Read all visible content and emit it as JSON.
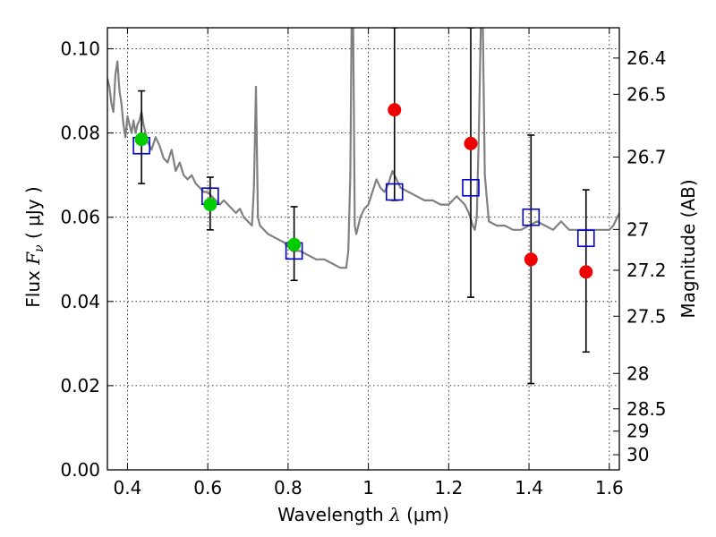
{
  "chart_data": {
    "type": "scatter",
    "title": "",
    "xlabel": "Wavelength  λ (μm)",
    "ylabel_left": "Flux  F_ν  ( μJy )",
    "ylabel_left_parts": {
      "prefix": "Flux  ",
      "symbol": "F",
      "subscript": "ν",
      "suffix": "  ( μJy )"
    },
    "xlabel_parts": {
      "prefix": "Wavelength  ",
      "symbol": "λ",
      "suffix": " (μm)"
    },
    "ylabel_right": "Magnitude (AB)",
    "xlim": [
      0.35,
      1.625
    ],
    "ylim": [
      0.0,
      0.105
    ],
    "grid": true,
    "x_ticks": [
      0.4,
      0.6,
      0.8,
      1.0,
      1.2,
      1.4,
      1.6
    ],
    "x_tick_labels": [
      "0.4",
      "0.6",
      "0.8",
      "1",
      "1.2",
      "1.4",
      "1.6"
    ],
    "y_ticks": [
      0.0,
      0.02,
      0.04,
      0.06,
      0.08,
      0.1
    ],
    "y_tick_labels": [
      "0.00",
      "0.02",
      "0.04",
      "0.06",
      "0.08",
      "0.10"
    ],
    "right_ticks": [
      {
        "flux": 0.0978,
        "label": "26.4"
      },
      {
        "flux": 0.0892,
        "label": "26.5"
      },
      {
        "flux": 0.0743,
        "label": "26.7"
      },
      {
        "flux": 0.0571,
        "label": "27"
      },
      {
        "flux": 0.0474,
        "label": "27.2"
      },
      {
        "flux": 0.0365,
        "label": "27.5"
      },
      {
        "flux": 0.0229,
        "label": "28"
      },
      {
        "flux": 0.0145,
        "label": "28.5"
      },
      {
        "flux": 0.0092,
        "label": "29"
      },
      {
        "flux": 0.0036,
        "label": "30"
      }
    ],
    "colors": {
      "model": "#808080",
      "model_photometry": "#0000cc",
      "optical_detections": "#00cc00",
      "nir_detections": "#ee0000",
      "errorbars": "#000000"
    },
    "series": [
      {
        "role": "model-spectrum",
        "x": [
          0.35,
          0.355,
          0.36,
          0.365,
          0.37,
          0.375,
          0.38,
          0.385,
          0.39,
          0.395,
          0.4,
          0.405,
          0.41,
          0.415,
          0.42,
          0.425,
          0.43,
          0.435,
          0.44,
          0.445,
          0.45,
          0.46,
          0.47,
          0.48,
          0.49,
          0.5,
          0.51,
          0.52,
          0.53,
          0.54,
          0.55,
          0.56,
          0.57,
          0.58,
          0.59,
          0.6,
          0.61,
          0.62,
          0.63,
          0.64,
          0.65,
          0.66,
          0.67,
          0.68,
          0.69,
          0.7,
          0.71,
          0.715,
          0.72,
          0.725,
          0.73,
          0.75,
          0.77,
          0.79,
          0.81,
          0.83,
          0.85,
          0.87,
          0.89,
          0.91,
          0.93,
          0.945,
          0.95,
          0.955,
          0.958,
          0.962,
          0.966,
          0.97,
          0.975,
          0.98,
          0.99,
          1.0,
          1.01,
          1.02,
          1.03,
          1.04,
          1.05,
          1.06,
          1.08,
          1.1,
          1.12,
          1.14,
          1.16,
          1.18,
          1.2,
          1.22,
          1.24,
          1.25,
          1.26,
          1.265,
          1.27,
          1.275,
          1.28,
          1.285,
          1.29,
          1.3,
          1.32,
          1.34,
          1.36,
          1.38,
          1.4,
          1.42,
          1.44,
          1.46,
          1.48,
          1.5,
          1.52,
          1.54,
          1.56,
          1.58,
          1.6,
          1.61,
          1.625
        ],
        "y": [
          0.093,
          0.091,
          0.087,
          0.085,
          0.094,
          0.097,
          0.09,
          0.087,
          0.082,
          0.079,
          0.084,
          0.082,
          0.08,
          0.083,
          0.08,
          0.082,
          0.083,
          0.085,
          0.082,
          0.08,
          0.078,
          0.076,
          0.079,
          0.077,
          0.074,
          0.073,
          0.076,
          0.071,
          0.073,
          0.07,
          0.069,
          0.07,
          0.068,
          0.067,
          0.066,
          0.066,
          0.065,
          0.064,
          0.063,
          0.064,
          0.063,
          0.062,
          0.061,
          0.062,
          0.06,
          0.059,
          0.058,
          0.067,
          0.091,
          0.06,
          0.058,
          0.056,
          0.055,
          0.054,
          0.052,
          0.052,
          0.051,
          0.05,
          0.05,
          0.049,
          0.048,
          0.048,
          0.052,
          0.07,
          0.105,
          0.105,
          0.058,
          0.056,
          0.058,
          0.06,
          0.062,
          0.063,
          0.066,
          0.069,
          0.067,
          0.066,
          0.068,
          0.071,
          0.067,
          0.066,
          0.065,
          0.064,
          0.064,
          0.063,
          0.063,
          0.065,
          0.063,
          0.061,
          0.058,
          0.057,
          0.06,
          0.08,
          0.105,
          0.105,
          0.07,
          0.059,
          0.058,
          0.058,
          0.057,
          0.057,
          0.058,
          0.059,
          0.058,
          0.057,
          0.059,
          0.057,
          0.057,
          0.057,
          0.057,
          0.057,
          0.057,
          0.058,
          0.061
        ]
      },
      {
        "role": "model-photometry",
        "marker": "open-square",
        "x": [
          0.435,
          0.606,
          0.815,
          1.065,
          1.255,
          1.405,
          1.542
        ],
        "y": [
          0.077,
          0.065,
          0.052,
          0.066,
          0.067,
          0.06,
          0.055
        ]
      },
      {
        "role": "optical-detections",
        "marker": "filled-circle",
        "x": [
          0.435,
          0.606,
          0.815
        ],
        "y": [
          0.0785,
          0.063,
          0.0535
        ],
        "yerr_low": [
          0.068,
          0.057,
          0.045
        ],
        "yerr_high": [
          0.09,
          0.0695,
          0.0625
        ]
      },
      {
        "role": "nir-detections",
        "marker": "filled-circle",
        "x": [
          1.065,
          1.255,
          1.405,
          1.542
        ],
        "y": [
          0.0855,
          0.0775,
          0.05,
          0.047
        ],
        "yerr_low": [
          0.064,
          0.041,
          0.0205,
          0.028
        ],
        "yerr_high": [
          0.105,
          0.105,
          0.0795,
          0.0665
        ]
      }
    ]
  }
}
